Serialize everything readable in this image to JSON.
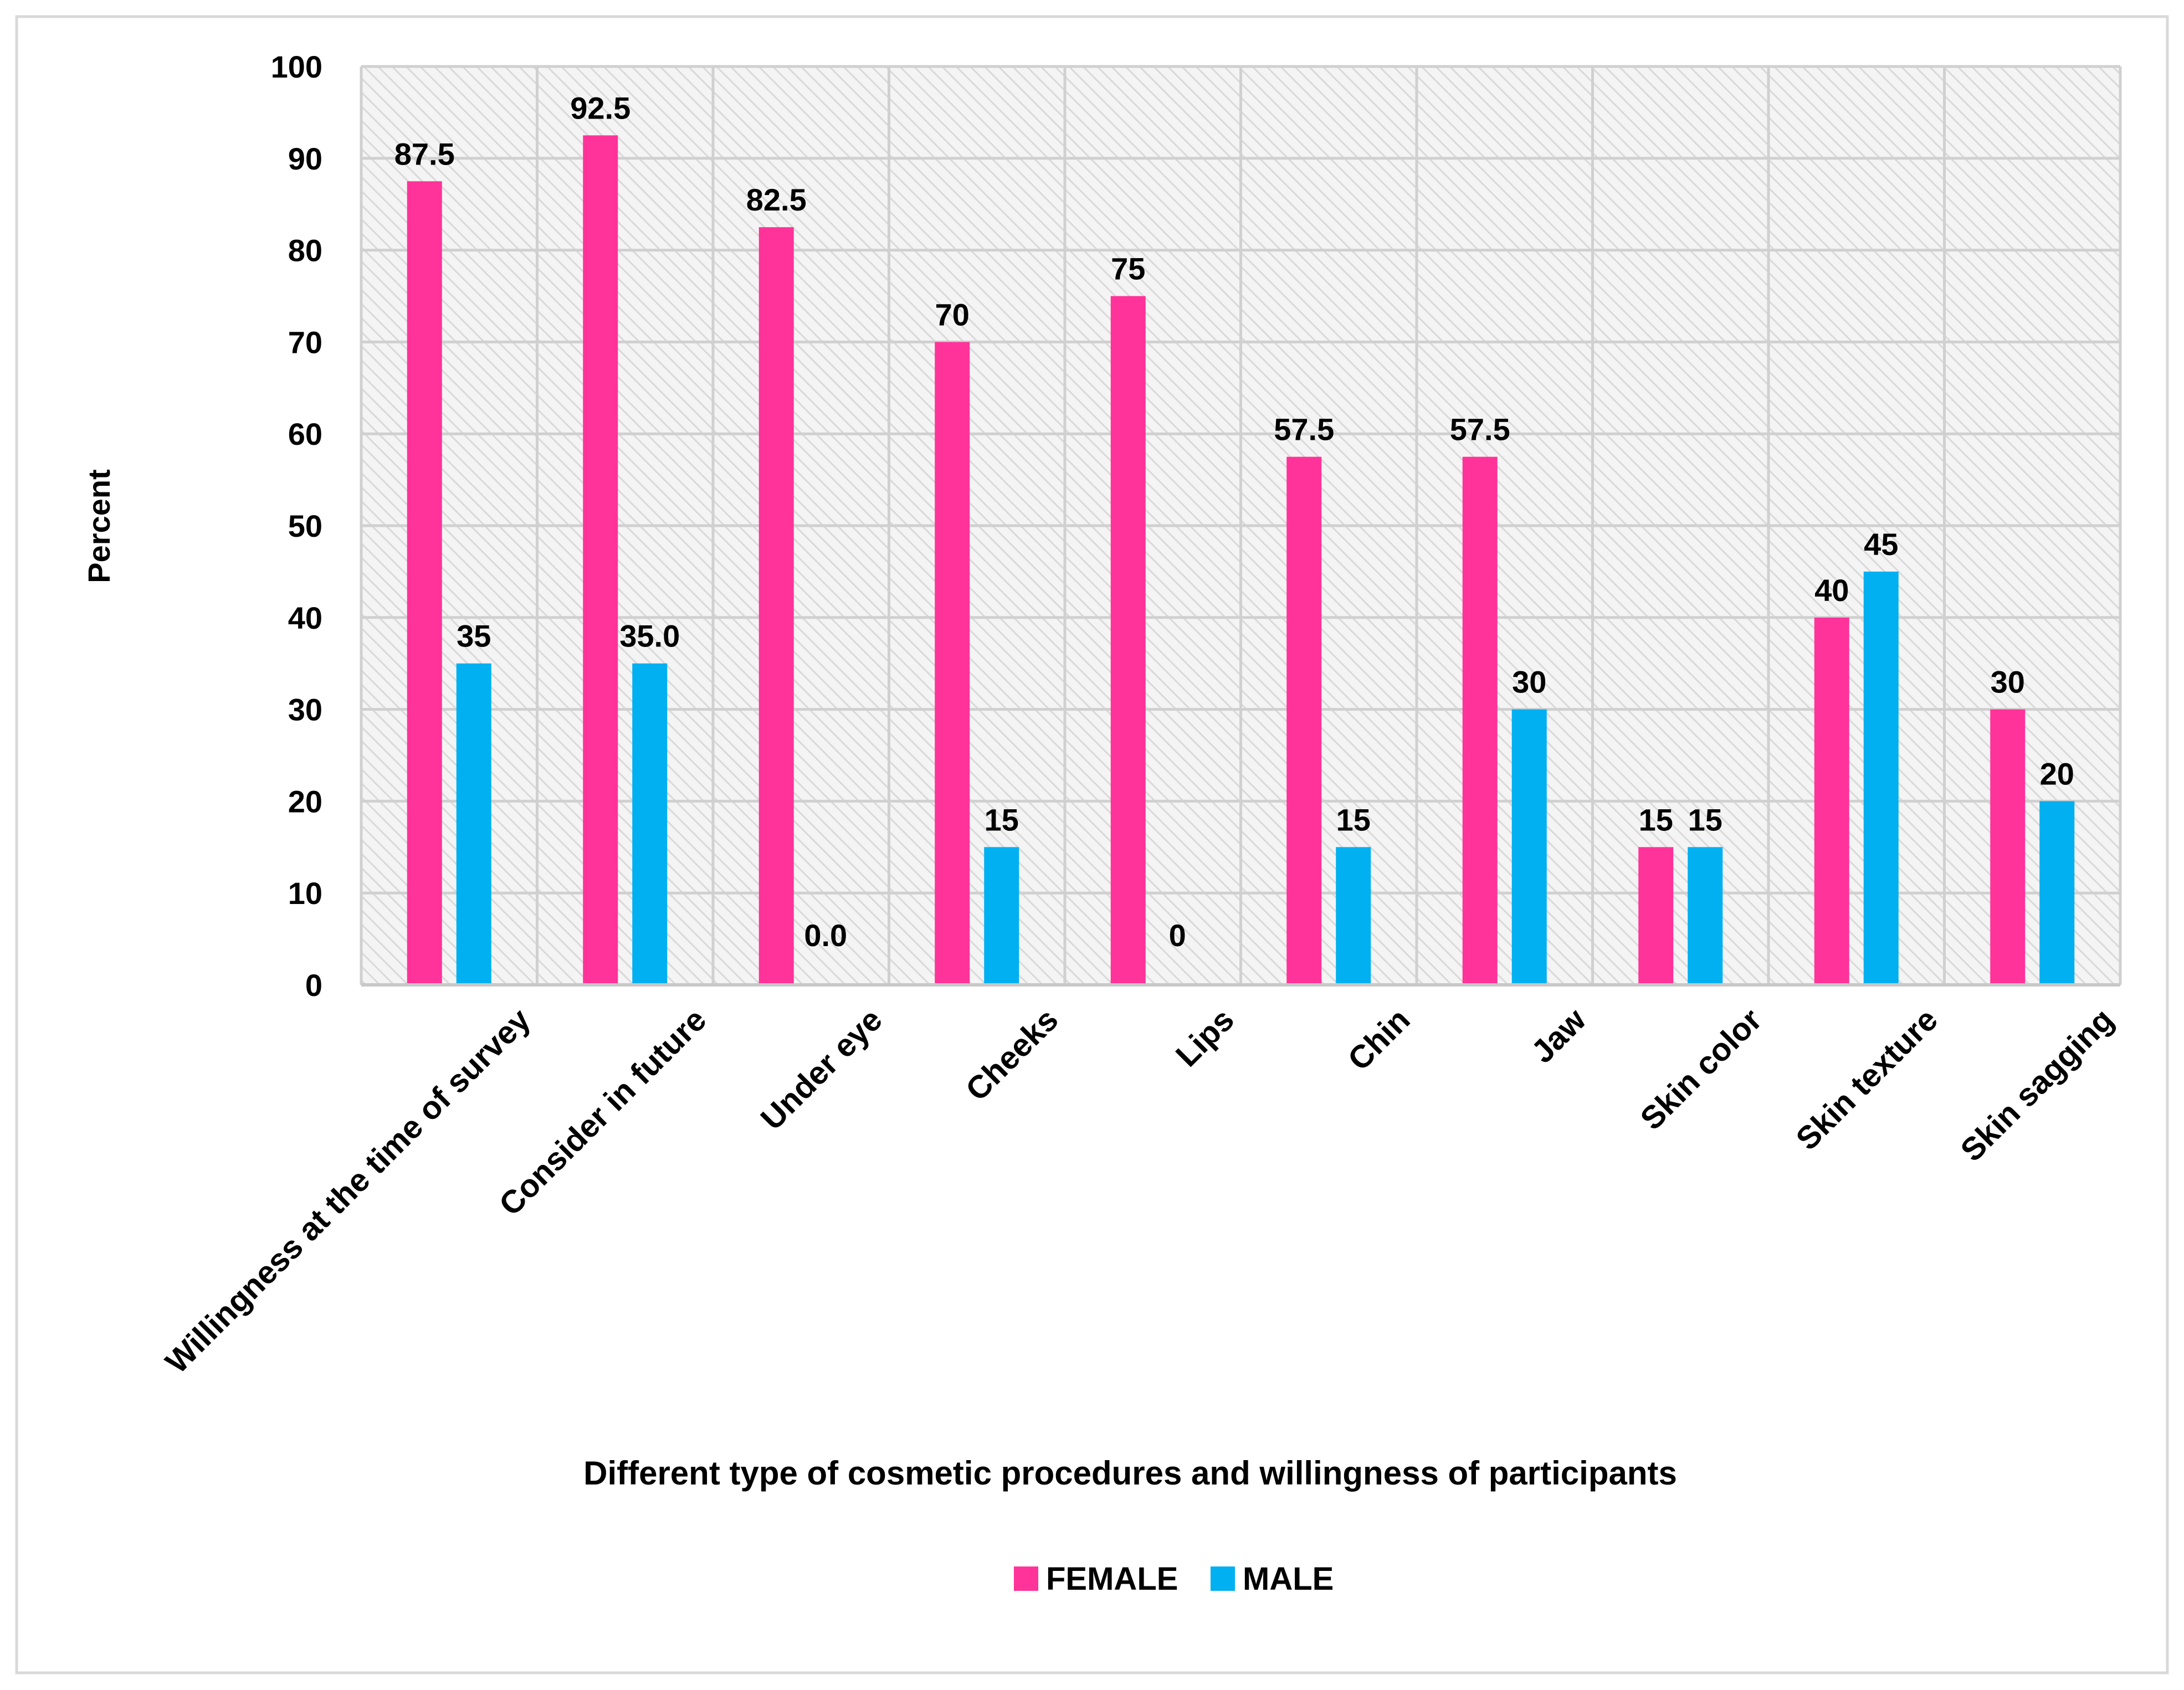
{
  "chart_data": {
    "type": "bar",
    "title": "",
    "xlabel": "Different type of cosmetic procedures and willingness of participants",
    "ylabel": "Percent",
    "ylim": [
      0,
      100
    ],
    "yticks": [
      "0",
      "10",
      "20",
      "30",
      "40",
      "50",
      "60",
      "70",
      "80",
      "90",
      "100"
    ],
    "grid": true,
    "legend_position": "bottom",
    "categories": [
      "Willingness at the time of survey",
      "Consider in future",
      "Under eye",
      "Cheeks",
      "Lips",
      "Chin",
      "Jaw",
      "Skin color",
      "Skin texture",
      "Skin sagging"
    ],
    "series": [
      {
        "name": "FEMALE",
        "color": "#FF3399",
        "values": [
          87.5,
          92.5,
          82.5,
          70,
          75,
          57.5,
          57.5,
          15,
          40,
          30
        ],
        "labels": [
          "87.5",
          "92.5",
          "82.5",
          "70",
          "75",
          "57.5",
          "57.5",
          "15",
          "40",
          "30"
        ]
      },
      {
        "name": "MALE",
        "color": "#00B0F0",
        "values": [
          35,
          35,
          0,
          15,
          0,
          15,
          30,
          15,
          45,
          20
        ],
        "labels": [
          "35",
          "35.0",
          "0.0",
          "15",
          "0",
          "15",
          "30",
          "15",
          "45",
          "20"
        ]
      }
    ]
  }
}
